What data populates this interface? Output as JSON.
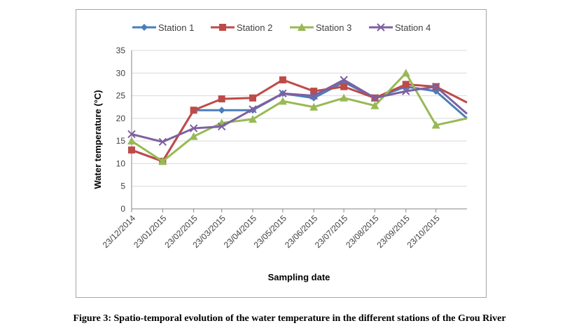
{
  "chart_data": {
    "type": "line",
    "xlabel": "Sampling date",
    "ylabel": "Water temperature (°C)",
    "ylim": [
      0,
      35
    ],
    "yticks": [
      0,
      5,
      10,
      15,
      20,
      25,
      30,
      35
    ],
    "x_tick_labels": [
      "23/12/2014",
      "23/01/2015",
      "23/02/2015",
      "23/03/2015",
      "23/04/2015",
      "23/05/2015",
      "23/06/2015",
      "23/07/2015",
      "23/08/2015",
      "23/09/2015",
      "23/10/2015"
    ],
    "grid": true,
    "legend_position": "top",
    "series": [
      {
        "name": "Station 1",
        "color": "#4a7ebb",
        "marker": "diamond",
        "x": [
          "2014-12-23",
          "2015-01-23",
          "2015-02-23",
          "2015-03-23",
          "2015-04-23",
          "2015-05-23",
          "2015-06-23",
          "2015-07-23",
          "2015-08-23",
          "2015-09-23",
          "2015-10-23",
          "2015-11-23"
        ],
        "values": [
          13,
          10.5,
          21.8,
          21.8,
          21.8,
          25.5,
          24.5,
          28,
          24.5,
          27,
          26,
          20
        ]
      },
      {
        "name": "Station 2",
        "color": "#be4b48",
        "marker": "square",
        "x": [
          "2014-12-23",
          "2015-01-23",
          "2015-02-23",
          "2015-03-23",
          "2015-04-23",
          "2015-05-23",
          "2015-06-23",
          "2015-07-23",
          "2015-08-23",
          "2015-09-23",
          "2015-10-23",
          "2015-11-23"
        ],
        "values": [
          13,
          10.5,
          21.8,
          24.3,
          24.5,
          28.5,
          26,
          27,
          24.5,
          27.5,
          27,
          23.5
        ]
      },
      {
        "name": "Station 3",
        "color": "#98b954",
        "marker": "triangle",
        "x": [
          "2014-12-23",
          "2015-01-23",
          "2015-02-23",
          "2015-03-23",
          "2015-04-23",
          "2015-05-23",
          "2015-06-23",
          "2015-07-23",
          "2015-08-23",
          "2015-09-23",
          "2015-10-23",
          "2015-11-23"
        ],
        "values": [
          15,
          10.5,
          16,
          19,
          19.8,
          23.8,
          22.5,
          24.5,
          22.8,
          30,
          18.5,
          20
        ]
      },
      {
        "name": "Station 4",
        "color": "#7d60a0",
        "marker": "x",
        "x": [
          "2014-12-23",
          "2015-01-23",
          "2015-02-23",
          "2015-03-23",
          "2015-04-23",
          "2015-05-23",
          "2015-06-23",
          "2015-07-23",
          "2015-08-23",
          "2015-09-23",
          "2015-10-23",
          "2015-11-23"
        ],
        "values": [
          16.5,
          14.8,
          17.8,
          18.2,
          22,
          25.5,
          25,
          28.5,
          24.5,
          26,
          27,
          21
        ]
      }
    ]
  },
  "caption": "Figure 3: Spatio-temporal evolution of the water temperature in the different stations of the Grou River"
}
